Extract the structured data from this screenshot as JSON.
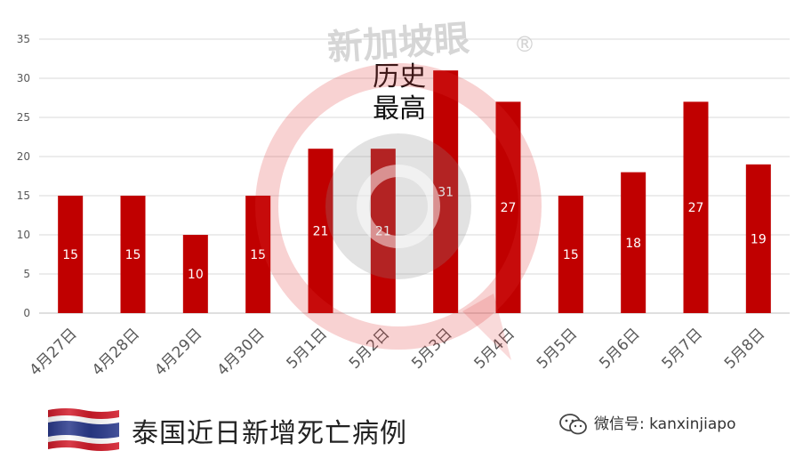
{
  "chart_data": {
    "type": "bar",
    "categories": [
      "4月27日",
      "4月28日",
      "4月29日",
      "4月30日",
      "5月1日",
      "5月2日",
      "5月3日",
      "5月4日",
      "5月5日",
      "5月6日",
      "5月7日",
      "5月8日"
    ],
    "values": [
      15,
      15,
      10,
      15,
      21,
      21,
      31,
      27,
      15,
      18,
      27,
      19
    ],
    "ylim": [
      0,
      35
    ],
    "yticks": [
      0,
      5,
      10,
      15,
      20,
      25,
      30,
      35
    ],
    "grid": true,
    "bar_color": "#c00000",
    "annotation": {
      "line1": "历史",
      "line2": "最高",
      "category": "5月3日"
    }
  },
  "watermark": {
    "text": "新加坡眼",
    "mark": "®"
  },
  "caption": "泰国近日新增死亡病例",
  "wechat": {
    "text": "微信号: kanxinjiapo"
  },
  "colors": {
    "bar": "#c00000",
    "watermark_ring": "#e03030",
    "watermark_text": "#c8c8c8"
  },
  "flag": {
    "name": "thailand-flag"
  }
}
